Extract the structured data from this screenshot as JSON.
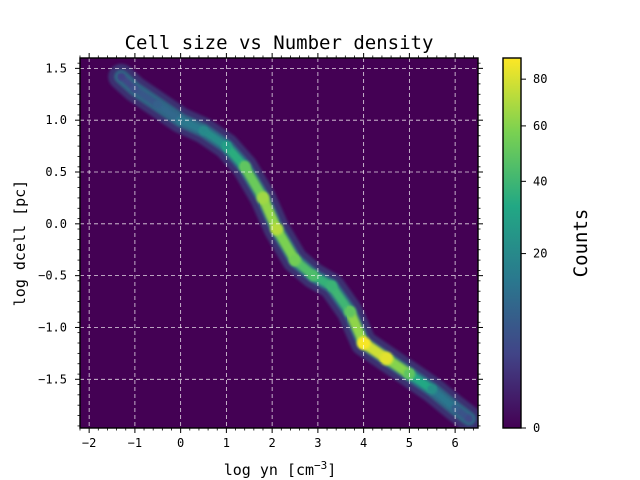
{
  "chart_data": {
    "type": "heatmap",
    "title": "Cell size vs Number density",
    "xlabel": "log yn [cm",
    "xlabel_sup": "−3",
    "xlabel_close": "]",
    "ylabel": "log dcell [pc]",
    "xlim": [
      -2.2,
      6.5
    ],
    "ylim": [
      -1.97,
      1.6
    ],
    "xticks": [
      -2,
      -1,
      0,
      1,
      2,
      3,
      4,
      5,
      6
    ],
    "xtick_labels": [
      "−2",
      "−1",
      "0",
      "1",
      "2",
      "3",
      "4",
      "5",
      "6"
    ],
    "yticks": [
      1.5,
      1.0,
      0.5,
      0.0,
      -0.5,
      -1.0,
      -1.5
    ],
    "ytick_labels": [
      "1.5",
      "1.0",
      "0.5",
      "0.0",
      "−0.5",
      "−1.0",
      "−1.5"
    ],
    "grid": true,
    "colormap": "viridis",
    "background_color": "#440154",
    "grid_color": "#ffffff",
    "colorbar": {
      "label": "Counts",
      "scale": "sqrt",
      "range": [
        0,
        90
      ],
      "ticks": [
        0,
        20,
        40,
        60,
        80
      ],
      "tick_labels": [
        "0",
        "20",
        "40",
        "60",
        "80"
      ]
    },
    "ridge": [
      {
        "x": -1.3,
        "y": 1.42,
        "counts": 3
      },
      {
        "x": -1.0,
        "y": 1.3,
        "counts": 5
      },
      {
        "x": -0.5,
        "y": 1.15,
        "counts": 8
      },
      {
        "x": 0.0,
        "y": 1.0,
        "counts": 12
      },
      {
        "x": 0.5,
        "y": 0.9,
        "counts": 18
      },
      {
        "x": 1.0,
        "y": 0.75,
        "counts": 25
      },
      {
        "x": 1.4,
        "y": 0.55,
        "counts": 45
      },
      {
        "x": 1.8,
        "y": 0.25,
        "counts": 60
      },
      {
        "x": 2.1,
        "y": -0.05,
        "counts": 65
      },
      {
        "x": 2.5,
        "y": -0.35,
        "counts": 50
      },
      {
        "x": 2.9,
        "y": -0.5,
        "counts": 40
      },
      {
        "x": 3.3,
        "y": -0.6,
        "counts": 35
      },
      {
        "x": 3.7,
        "y": -0.85,
        "counts": 45
      },
      {
        "x": 4.0,
        "y": -1.15,
        "counts": 80
      },
      {
        "x": 4.5,
        "y": -1.3,
        "counts": 75
      },
      {
        "x": 5.0,
        "y": -1.45,
        "counts": 45
      },
      {
        "x": 5.5,
        "y": -1.6,
        "counts": 20
      },
      {
        "x": 6.0,
        "y": -1.78,
        "counts": 8
      },
      {
        "x": 6.3,
        "y": -1.88,
        "counts": 4
      }
    ]
  }
}
